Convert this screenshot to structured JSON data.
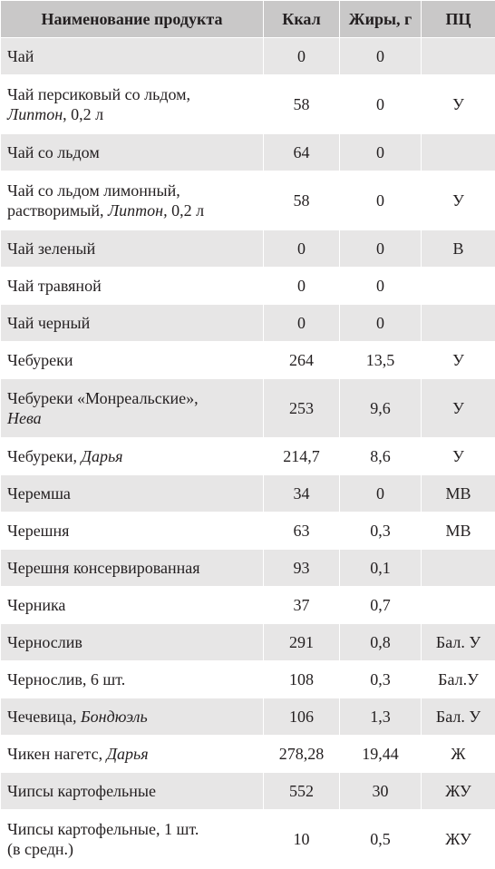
{
  "headers": [
    "Наименование продукта",
    "Ккал",
    "Жиры, г",
    "ПЦ"
  ],
  "rows": [
    {
      "line1": "Чай",
      "line2": "",
      "pub": "",
      "tail": "",
      "kcal": "0",
      "fat": "0",
      "pc": ""
    },
    {
      "line1": "Чай персиковый со льдом,",
      "line2": "",
      "pub": "Липтон",
      "tail": ", 0,2 л",
      "kcal": "58",
      "fat": "0",
      "pc": "У"
    },
    {
      "line1": "Чай со льдом",
      "line2": "",
      "pub": "",
      "tail": "",
      "kcal": "64",
      "fat": "0",
      "pc": ""
    },
    {
      "line1": "Чай со льдом лимонный,",
      "line2": "растворимый, ",
      "pub": "Липтон,",
      "tail": " 0,2 л",
      "kcal": "58",
      "fat": "0",
      "pc": "У"
    },
    {
      "line1": "Чай зеленый",
      "line2": "",
      "pub": "",
      "tail": "",
      "kcal": "0",
      "fat": "0",
      "pc": "В"
    },
    {
      "line1": "Чай травяной",
      "line2": "",
      "pub": "",
      "tail": "",
      "kcal": "0",
      "fat": "0",
      "pc": ""
    },
    {
      "line1": "Чай черный",
      "line2": "",
      "pub": "",
      "tail": "",
      "kcal": "0",
      "fat": "0",
      "pc": ""
    },
    {
      "line1": "Чебуреки",
      "line2": "",
      "pub": "",
      "tail": "",
      "kcal": "264",
      "fat": "13,5",
      "pc": "У"
    },
    {
      "line1": "Чебуреки «Монреальские»,",
      "line2": "",
      "pub": "Нева",
      "tail": "",
      "kcal": "253",
      "fat": "9,6",
      "pc": "У"
    },
    {
      "line1": "Чебуреки, ",
      "line2": "",
      "pub": "Дарья",
      "tail": "",
      "kcal": "214,7",
      "fat": "8,6",
      "pc": "У"
    },
    {
      "line1": "Черемша",
      "line2": "",
      "pub": "",
      "tail": "",
      "kcal": "34",
      "fat": "0",
      "pc": "МВ"
    },
    {
      "line1": "Черешня",
      "line2": "",
      "pub": "",
      "tail": "",
      "kcal": "63",
      "fat": "0,3",
      "pc": "МВ"
    },
    {
      "line1": "Черешня консервированная",
      "line2": "",
      "pub": "",
      "tail": "",
      "kcal": "93",
      "fat": "0,1",
      "pc": ""
    },
    {
      "line1": "Черника",
      "line2": "",
      "pub": "",
      "tail": "",
      "kcal": "37",
      "fat": "0,7",
      "pc": ""
    },
    {
      "line1": "Чернослив",
      "line2": "",
      "pub": "",
      "tail": "",
      "kcal": "291",
      "fat": "0,8",
      "pc": "Бал. У"
    },
    {
      "line1": "Чернослив, 6 шт.",
      "line2": "",
      "pub": "",
      "tail": "",
      "kcal": "108",
      "fat": "0,3",
      "pc": "Бал.У"
    },
    {
      "line1": "Чечевица, ",
      "line2": "",
      "pub": "Бондюэль",
      "tail": "",
      "kcal": "106",
      "fat": "1,3",
      "pc": "Бал. У"
    },
    {
      "line1": "Чикен нагетс, ",
      "line2": "",
      "pub": "Дарья",
      "tail": "",
      "kcal": "278,28",
      "fat": "19,44",
      "pc": "Ж"
    },
    {
      "line1": "Чипсы картофельные",
      "line2": "",
      "pub": "",
      "tail": "",
      "kcal": "552",
      "fat": "30",
      "pc": "ЖУ"
    },
    {
      "line1": "Чипсы картофельные, 1 шт.",
      "line2": "(в средн.)",
      "pub": "",
      "tail": "",
      "kcal": "10",
      "fat": "0,5",
      "pc": "ЖУ"
    }
  ]
}
